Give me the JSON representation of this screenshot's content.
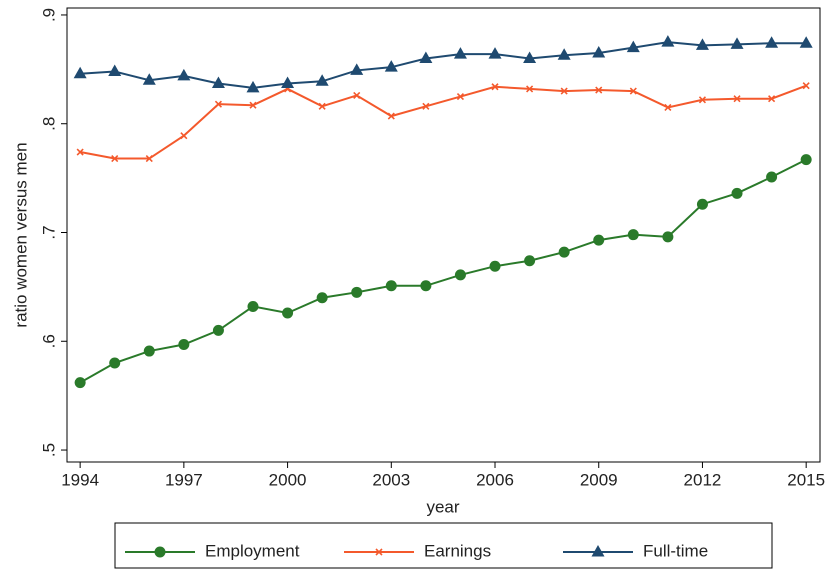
{
  "chart_data": {
    "type": "line",
    "x_label": "year",
    "y_label": "ratio women versus men",
    "x": [
      1994,
      1995,
      1996,
      1997,
      1998,
      1999,
      2000,
      2001,
      2002,
      2003,
      2004,
      2005,
      2006,
      2007,
      2008,
      2009,
      2010,
      2011,
      2012,
      2013,
      2014,
      2015
    ],
    "series": [
      {
        "name": "Employment",
        "color": "#2a7a2a",
        "marker": "circle",
        "values": [
          0.562,
          0.58,
          0.591,
          0.597,
          0.61,
          0.632,
          0.626,
          0.64,
          0.645,
          0.651,
          0.651,
          0.661,
          0.669,
          0.674,
          0.682,
          0.693,
          0.698,
          0.696,
          0.726,
          0.736,
          0.751,
          0.767
        ]
      },
      {
        "name": "Earnings",
        "color": "#f4592c",
        "marker": "x",
        "values": [
          0.774,
          0.768,
          0.768,
          0.789,
          0.818,
          0.817,
          0.832,
          0.816,
          0.826,
          0.807,
          0.816,
          0.825,
          0.834,
          0.832,
          0.83,
          0.831,
          0.83,
          0.815,
          0.822,
          0.823,
          0.823,
          0.835
        ]
      },
      {
        "name": "Full-time",
        "color": "#1f4a70",
        "marker": "triangle",
        "values": [
          0.846,
          0.848,
          0.84,
          0.844,
          0.837,
          0.833,
          0.837,
          0.839,
          0.849,
          0.852,
          0.86,
          0.864,
          0.864,
          0.86,
          0.863,
          0.865,
          0.87,
          0.875,
          0.872,
          0.873,
          0.874,
          0.874
        ]
      }
    ],
    "xlim": [
      1993.62,
      2015.4
    ],
    "xticks": [
      1994,
      1997,
      2000,
      2003,
      2006,
      2009,
      2012,
      2015
    ],
    "ylim": [
      0.489,
      0.9064
    ],
    "yticks": [
      {
        "value": 0.5,
        "label": ".5"
      },
      {
        "value": 0.6,
        "label": ".6"
      },
      {
        "value": 0.7,
        "label": ".7"
      },
      {
        "value": 0.8,
        "label": ".8"
      },
      {
        "value": 0.9,
        "label": ".9"
      }
    ],
    "grid": false,
    "legend": "bottom"
  }
}
